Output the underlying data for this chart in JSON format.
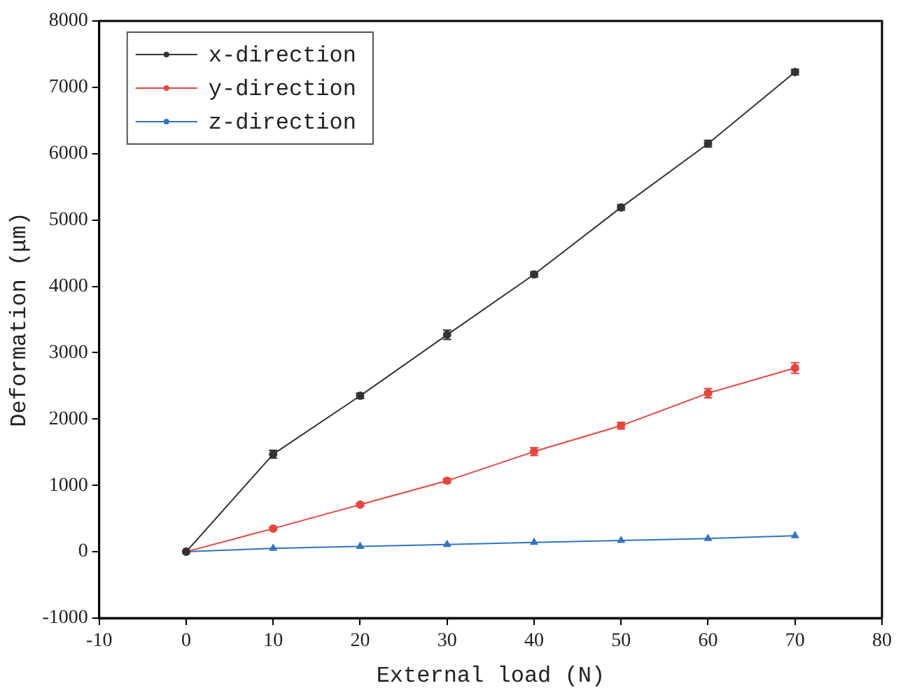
{
  "chart_data": {
    "type": "line",
    "xlabel": "External load (N)",
    "ylabel": "Deformation (μm)",
    "x": [
      0,
      10,
      20,
      30,
      40,
      50,
      60,
      70
    ],
    "xlim": [
      -10,
      80
    ],
    "xticks": [
      -10,
      0,
      10,
      20,
      30,
      40,
      50,
      60,
      70,
      80
    ],
    "ylim": [
      -1000,
      8000
    ],
    "yticks": [
      -1000,
      0,
      1000,
      2000,
      3000,
      4000,
      5000,
      6000,
      7000,
      8000
    ],
    "grid": false,
    "legend": "top left",
    "marker": "circle",
    "line_style": "solid",
    "series": [
      {
        "name": "x-direction",
        "color": "#333333",
        "values": [
          0,
          1470,
          2350,
          3270,
          4180,
          5190,
          6150,
          7230
        ],
        "errors": [
          null,
          60,
          40,
          70,
          40,
          40,
          50,
          40
        ]
      },
      {
        "name": "y-direction",
        "color": "#e8453c",
        "values": [
          0,
          350,
          710,
          1070,
          1510,
          1900,
          2390,
          2770
        ],
        "errors": [
          null,
          20,
          20,
          30,
          60,
          50,
          70,
          80
        ]
      },
      {
        "name": "z-direction",
        "color": "#2f75c0",
        "marker": "triangle",
        "values": [
          0,
          50,
          80,
          110,
          140,
          170,
          200,
          240
        ]
      }
    ]
  }
}
